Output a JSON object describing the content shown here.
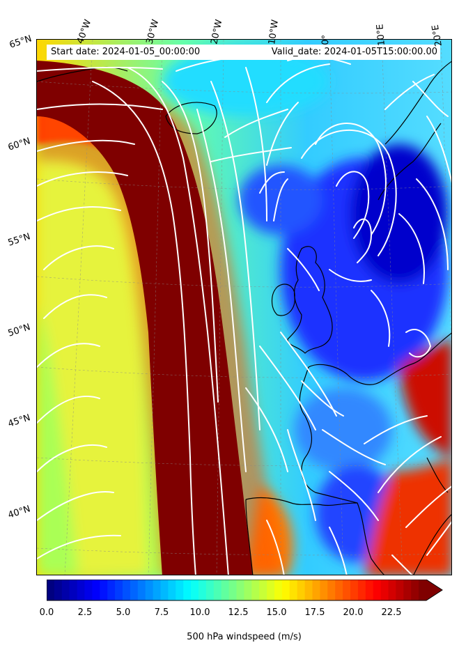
{
  "info": {
    "start_date": "Start date: 2024-01-05_00:00:00",
    "valid_date": "Valid_date: 2024-01-05T15:00:00.00"
  },
  "lon_labels": [
    "40°W",
    "30°W",
    "20°W",
    "10°W",
    "0°",
    "10°E",
    "20°E"
  ],
  "lat_labels": [
    "65°N",
    "60°N",
    "55°N",
    "50°N",
    "45°N",
    "40°N"
  ],
  "colorbar": {
    "label": "500 hPa windspeed (m/s)",
    "ticks": [
      "0.0",
      "2.5",
      "5.0",
      "7.5",
      "10.0",
      "12.5",
      "15.0",
      "17.5",
      "20.0",
      "22.5"
    ],
    "min": 0,
    "max": 25,
    "extend": "max",
    "colormap": "jet"
  },
  "field": {
    "variable": "500 hPa windspeed",
    "units": "m/s",
    "features": [
      "jet stream core over the central Atlantic",
      "low windspeed over the North Sea and UK",
      "strong winds over Iberia and the Mediterranean"
    ]
  },
  "colors": {
    "coastline": "#000000",
    "streamlines": "#ffffff",
    "jet_core": "#7f0000"
  }
}
